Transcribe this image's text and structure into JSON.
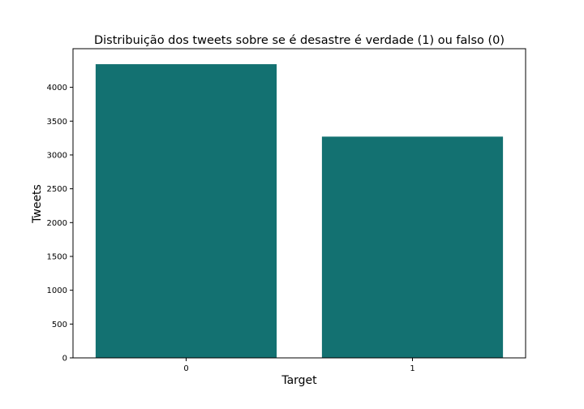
{
  "chart_data": {
    "type": "bar",
    "title": "Distribuição dos tweets sobre se é desastre é verdade (1) ou falso (0)",
    "xlabel": "Target",
    "ylabel": "Tweets",
    "categories": [
      "0",
      "1"
    ],
    "values": [
      4342,
      3271
    ],
    "ylim": [
      0,
      4571
    ],
    "yticks": [
      0,
      500,
      1000,
      1500,
      2000,
      2500,
      3000,
      3500,
      4000
    ],
    "bar_color": "#137171",
    "grid": false
  }
}
